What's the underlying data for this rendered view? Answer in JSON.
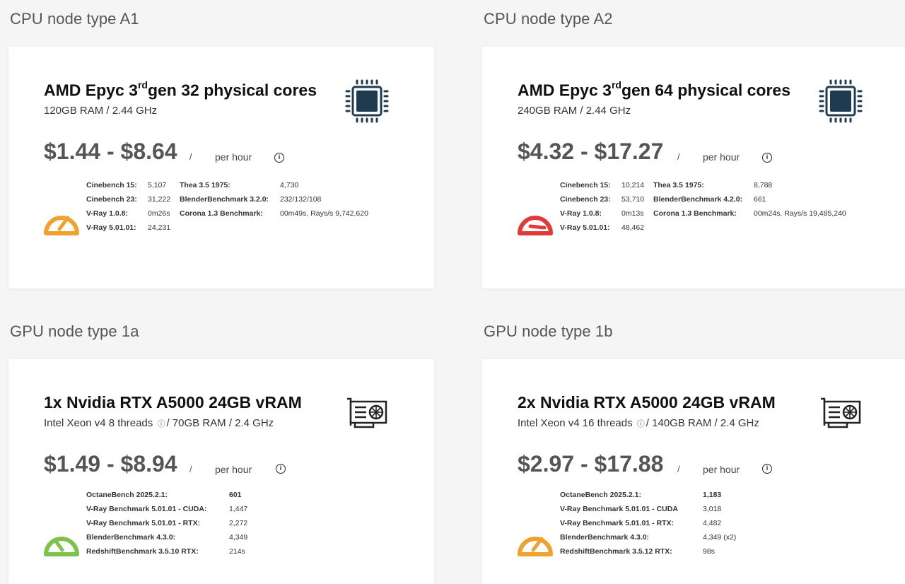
{
  "cpu_a1": {
    "section_title": "CPU node type A1",
    "title_pre": "AMD Epyc 3",
    "title_sup": "rd",
    "title_post": "gen 32 physical cores",
    "subtitle": "120GB RAM / 2.44 GHz",
    "price": "$1.44 - $8.64",
    "slash": "/",
    "per_hour": "per hour",
    "info": "i",
    "gauge_color": "#f0a22e",
    "bench": [
      {
        "l1": "Cinebench 15:",
        "v1": "5,107",
        "l2": "Thea 3.5 1975:",
        "v2": "4,730"
      },
      {
        "l1": "Cinebench 23:",
        "v1": "31,222",
        "l2": "BlenderBenchmark 3.2.0:",
        "v2": "232/132/108"
      },
      {
        "l1": "V-Ray 1.0.8:",
        "v1": "0m26s",
        "l2": "Corona 1.3 Benchmark:",
        "v2": "00m49s, Rays/s 9,742,620"
      },
      {
        "l1": "V-Ray 5.01.01:",
        "v1": "24,231",
        "l2": "",
        "v2": ""
      }
    ]
  },
  "cpu_a2": {
    "section_title": "CPU node type A2",
    "title_pre": "AMD Epyc 3",
    "title_sup": "rd",
    "title_post": "gen 64 physical cores",
    "subtitle": "240GB RAM / 2.44 GHz",
    "price": "$4.32 - $17.27",
    "slash": "/",
    "per_hour": "per hour",
    "info": "i",
    "gauge_color": "#e03a3a",
    "bench": [
      {
        "l1": "Cinebench 15:",
        "v1": "10,214",
        "l2": "Thea 3.5 1975:",
        "v2": "8,788"
      },
      {
        "l1": "Cinebench 23:",
        "v1": "53,710",
        "l2": "BlenderBenchmark 4.2.0:",
        "v2": "661"
      },
      {
        "l1": "V-Ray 1.0.8:",
        "v1": "0m13s",
        "l2": "Corona 1.3 Benchmark:",
        "v2": "00m24s, Rays/s 19,485,240"
      },
      {
        "l1": "V-Ray 5.01.01:",
        "v1": "48,462",
        "l2": "",
        "v2": ""
      }
    ]
  },
  "gpu_1a": {
    "section_title": "GPU node type 1a",
    "title": "1x Nvidia RTX A5000 24GB vRAM",
    "sub_pre": "Intel Xeon v4 8 threads",
    "sub_info": "ⓘ",
    "sub_post": "/ 70GB RAM / 2.4 GHz",
    "price": "$1.49 - $8.94",
    "slash": "/",
    "per_hour": "per hour",
    "info": "i",
    "gauge_color": "#7dc24b",
    "bench": [
      {
        "l": "OctaneBench 2025.2.1:",
        "v": "601"
      },
      {
        "l": "V-Ray Benchmark 5.01.01 - CUDA:",
        "v": "1,447"
      },
      {
        "l": "V-Ray Benchmark 5.01.01 - RTX:",
        "v": "2,272"
      },
      {
        "l": "BlenderBenchmark 4.3.0:",
        "v": "4,349"
      },
      {
        "l": "RedshiftBenchmark 3.5.10 RTX:",
        "v": "214s"
      }
    ]
  },
  "gpu_1b": {
    "section_title": "GPU node type 1b",
    "title": "2x Nvidia RTX A5000 24GB vRAM",
    "sub_pre": "Intel Xeon v4 16 threads",
    "sub_info": "ⓘ",
    "sub_post": "/ 140GB RAM / 2.4 GHz",
    "price": "$2.97 - $17.88",
    "slash": "/",
    "per_hour": "per hour",
    "info": "i",
    "gauge_color": "#f0a22e",
    "bench": [
      {
        "l": "OctaneBench 2025.2.1:",
        "v": "1,183"
      },
      {
        "l": "V-Ray Benchmark 5.01.01 - CUDA",
        "v": "3,018"
      },
      {
        "l": "V-Ray Benchmark 5.01.01 - RTX:",
        "v": "4,482"
      },
      {
        "l": "BlenderBenchmark 4.3.0:",
        "v": "4,349 (x2)"
      },
      {
        "l": "RedshiftBenchmark 3.5.12 RTX:",
        "v": "98s"
      }
    ]
  }
}
